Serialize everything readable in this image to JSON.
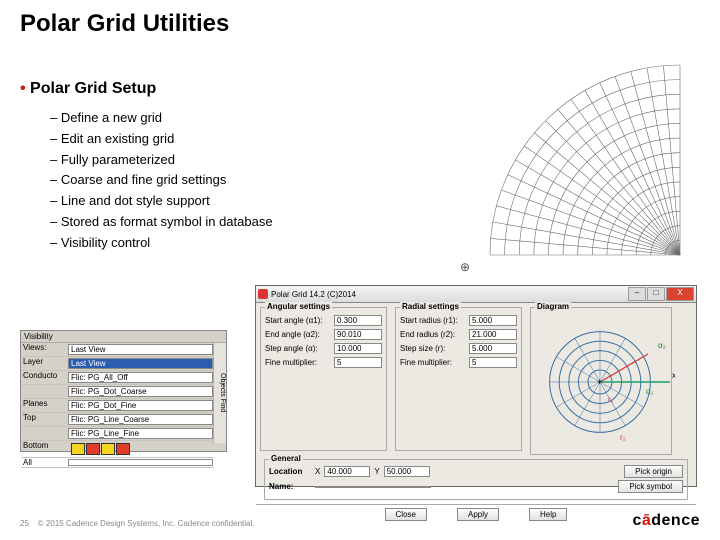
{
  "slide": {
    "title": "Polar Grid Utilities",
    "section": "Polar Grid Setup",
    "bullets": [
      "Define a new grid",
      "Edit an existing grid",
      "Fully parameterized",
      "Coarse and fine grid settings",
      "Line and dot style support",
      "Stored as format symbol in database",
      "Visibility control"
    ],
    "page_number": "25",
    "copyright": "© 2015 Cadence Design Systems, Inc. Cadence confidential.",
    "logo_text": "cādence"
  },
  "visibility_panel": {
    "tabs": [
      "Visibility"
    ],
    "side_tab": "Objects  Find",
    "rows": [
      {
        "label": "Views:",
        "value": "Last View",
        "dropdown": true
      },
      {
        "label": "Layer",
        "value": "Last View",
        "selected": true
      },
      {
        "label": "Conducto",
        "value": "Flic: PG_All_Off"
      },
      {
        "label": "",
        "value": "Flic: PG_Dot_Coarse"
      },
      {
        "label": "Planes",
        "value": "Flic: PG_Dot_Fine"
      },
      {
        "label": "Top",
        "value": "Flic: PG_Line_Coarse"
      },
      {
        "label": "",
        "value": "Flic: PG_Line_Fine"
      },
      {
        "label": "Bottom",
        "value": ""
      },
      {
        "label": "All",
        "value": ""
      }
    ],
    "swatches": [
      "#f5d422",
      "#e23b2e",
      "#f5d422",
      "#e23b2e"
    ]
  },
  "dialog": {
    "title": "Polar Grid 14.2 (C)2014",
    "icon_color": "#d33",
    "angular": {
      "legend": "Angular settings",
      "fields": [
        {
          "label": "Start angle (α1):",
          "value": "0.300"
        },
        {
          "label": "End angle (α2):",
          "value": "90.010"
        },
        {
          "label": "Step angle (α):",
          "value": "10.000"
        },
        {
          "label": "Fine multiplier:",
          "value": "5"
        }
      ]
    },
    "radial": {
      "legend": "Radial settings",
      "fields": [
        {
          "label": "Start radius (r1):",
          "value": "5.000"
        },
        {
          "label": "End radius (r2):",
          "value": "21.000"
        },
        {
          "label": "Step size (r):",
          "value": "5.000"
        },
        {
          "label": "Fine multiplier:",
          "value": "5"
        }
      ]
    },
    "diagram": {
      "legend": "Diagram",
      "rings": [
        5,
        9,
        13,
        17,
        21
      ],
      "origin_marker": "+",
      "labels": {
        "a1": "α₁",
        "a2": "α₂",
        "r1": "r₁",
        "r2": "r₂"
      },
      "colors": {
        "ring": "#3a6fa0",
        "ray": "#3a6fa0",
        "accent": "#d33",
        "alpha": "#1a8a1a",
        "x_axis": "#1aa06a"
      }
    },
    "general": {
      "legend": "General",
      "location_label": "Location",
      "x_label": "X",
      "x_value": "40.000",
      "y_label": "Y",
      "y_value": "50.000",
      "pick_origin": "Pick origin",
      "name_label": "Name:",
      "pick_symbol": "Pick symbol"
    },
    "buttons": [
      "Close",
      "Apply",
      "Help"
    ]
  },
  "polar_fan": {
    "bg": "#ffffff",
    "stroke": "#6b6b6b",
    "radii_count": 13,
    "angle_start": 0,
    "angle_end": 90,
    "angle_step": 5
  }
}
